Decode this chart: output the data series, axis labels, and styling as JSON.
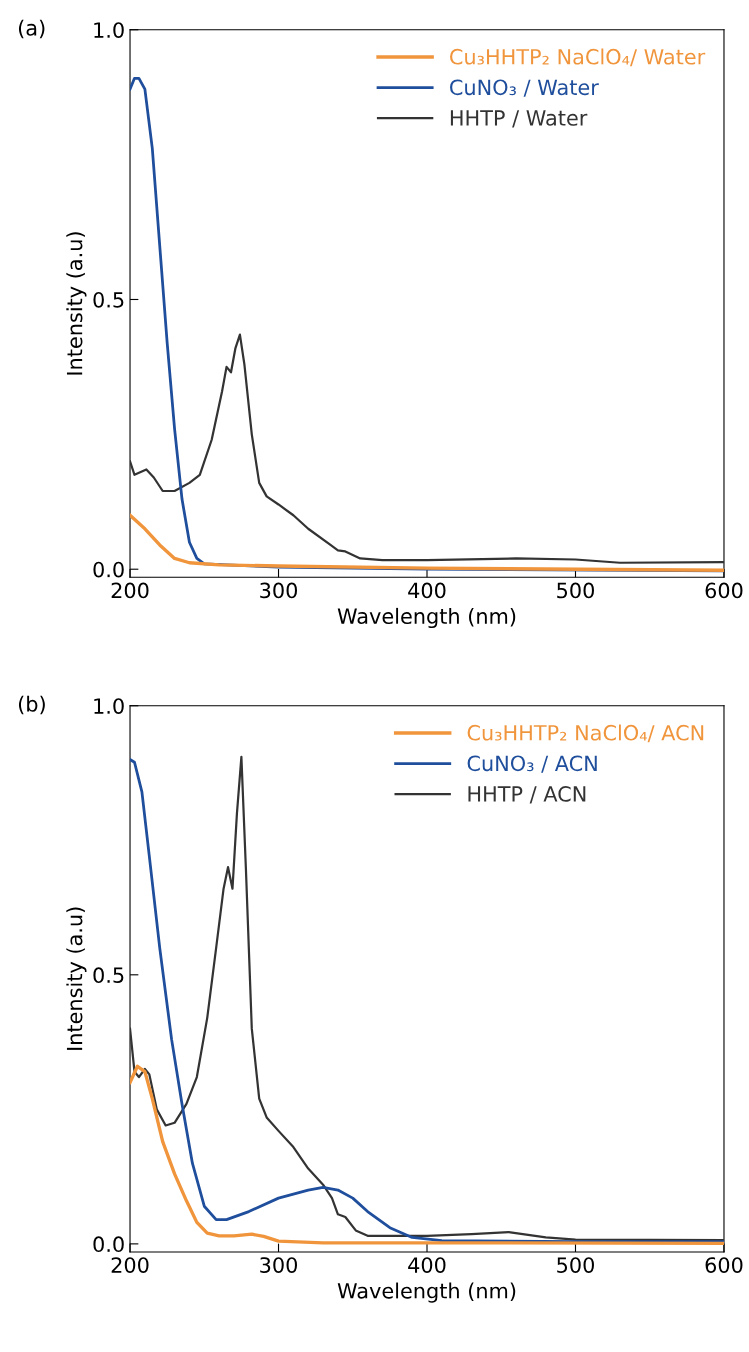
{
  "chart_data": [
    {
      "type": "line",
      "title": "(a)",
      "xlabel": "Wavelength (nm)",
      "ylabel": "Intensity (a.u)",
      "xlim": [
        200,
        600
      ],
      "ylim": [
        -0.015,
        1.0
      ],
      "xticks": [
        200,
        300,
        400,
        500,
        600
      ],
      "yticks": [
        {
          "value": 0,
          "label": "0.0"
        },
        {
          "value": 0.5,
          "label": "0.5"
        },
        {
          "value": 1.0,
          "label": "1.0"
        }
      ],
      "legend": "top right",
      "grid": false,
      "series": [
        {
          "name": "Cu₃HHTP₂ NaClO₄/ Water",
          "color": "#f0953c",
          "x": [
            200,
            210,
            220,
            230,
            240,
            260,
            300,
            400,
            600
          ],
          "values": [
            0.1,
            0.075,
            0.045,
            0.02,
            0.012,
            0.008,
            0.006,
            0.002,
            -0.002
          ]
        },
        {
          "name": "CuNO₃ / Water",
          "color": "#1f4e9c",
          "x": [
            200,
            203,
            206,
            210,
            215,
            220,
            225,
            230,
            235,
            240,
            245,
            250,
            300,
            400,
            600
          ],
          "values": [
            0.89,
            0.91,
            0.91,
            0.89,
            0.78,
            0.6,
            0.42,
            0.26,
            0.13,
            0.05,
            0.02,
            0.01,
            0.004,
            0.0,
            -0.003
          ]
        },
        {
          "name": "HHTP / Water",
          "color": "#333333",
          "x": [
            200,
            203,
            211,
            216,
            222,
            230,
            240,
            247,
            255,
            262,
            265,
            268,
            271,
            274,
            277,
            282,
            287,
            292,
            300,
            310,
            320,
            335,
            340,
            345,
            355,
            370,
            400,
            460,
            500,
            530,
            600
          ],
          "values": [
            0.2,
            0.175,
            0.185,
            0.17,
            0.145,
            0.145,
            0.16,
            0.175,
            0.24,
            0.33,
            0.375,
            0.365,
            0.41,
            0.435,
            0.38,
            0.25,
            0.16,
            0.135,
            0.12,
            0.1,
            0.075,
            0.045,
            0.035,
            0.033,
            0.02,
            0.017,
            0.017,
            0.02,
            0.018,
            0.012,
            0.013
          ]
        }
      ]
    },
    {
      "type": "line",
      "title": "(b)",
      "xlabel": "Wavelength (nm)",
      "ylabel": "Intensity (a.u)",
      "xlim": [
        200,
        600
      ],
      "ylim": [
        -0.015,
        1.0
      ],
      "xticks": [
        200,
        300,
        400,
        500,
        600
      ],
      "yticks": [
        {
          "value": 0,
          "label": "0.0"
        },
        {
          "value": 0.5,
          "label": "0.5"
        },
        {
          "value": 1.0,
          "label": "1.0"
        }
      ],
      "legend": "top right",
      "grid": false,
      "series": [
        {
          "name": "Cu₃HHTP₂ NaClO₄/ ACN",
          "color": "#f0953c",
          "x": [
            200,
            205,
            210,
            215,
            222,
            230,
            238,
            245,
            252,
            260,
            270,
            282,
            290,
            300,
            330,
            400,
            600
          ],
          "values": [
            0.3,
            0.33,
            0.32,
            0.27,
            0.19,
            0.13,
            0.08,
            0.04,
            0.02,
            0.015,
            0.015,
            0.018,
            0.014,
            0.005,
            0.002,
            0.002,
            0.001
          ]
        },
        {
          "name": "CuNO₃ / ACN",
          "color": "#1f4e9c",
          "x": [
            200,
            203,
            208,
            213,
            220,
            228,
            235,
            242,
            250,
            258,
            265,
            280,
            300,
            320,
            330,
            340,
            350,
            360,
            375,
            390,
            410,
            500,
            600
          ],
          "values": [
            0.9,
            0.895,
            0.84,
            0.72,
            0.55,
            0.38,
            0.26,
            0.15,
            0.07,
            0.045,
            0.045,
            0.06,
            0.085,
            0.1,
            0.105,
            0.1,
            0.085,
            0.06,
            0.03,
            0.012,
            0.006,
            0.004,
            0.004
          ]
        },
        {
          "name": "HHTP / ACN",
          "color": "#333333",
          "x": [
            200,
            203,
            206,
            210,
            213,
            218,
            224,
            230,
            238,
            245,
            252,
            258,
            263,
            266,
            269,
            272,
            275,
            278,
            282,
            287,
            292,
            300,
            310,
            320,
            330,
            336,
            340,
            345,
            352,
            360,
            400,
            430,
            455,
            480,
            500,
            600
          ],
          "values": [
            0.4,
            0.32,
            0.31,
            0.325,
            0.315,
            0.25,
            0.22,
            0.225,
            0.26,
            0.31,
            0.42,
            0.55,
            0.66,
            0.7,
            0.66,
            0.8,
            0.905,
            0.7,
            0.4,
            0.27,
            0.235,
            0.21,
            0.18,
            0.14,
            0.11,
            0.085,
            0.055,
            0.05,
            0.025,
            0.015,
            0.015,
            0.018,
            0.022,
            0.012,
            0.008,
            0.007
          ]
        }
      ]
    }
  ]
}
